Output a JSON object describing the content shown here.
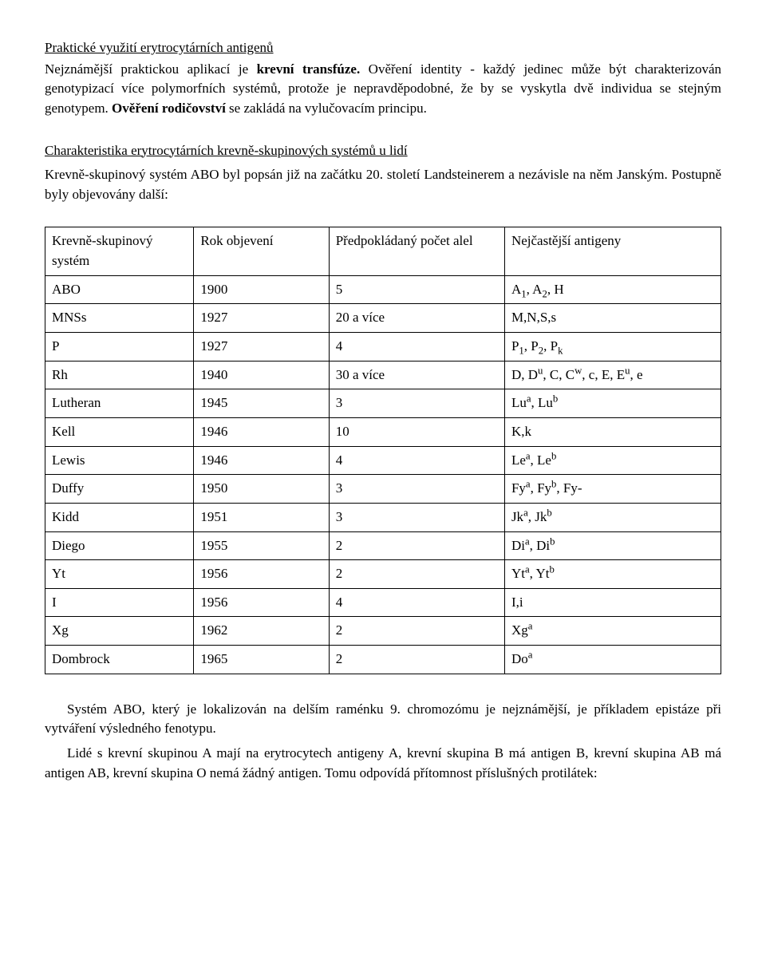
{
  "section1": {
    "title": "Praktické využití erytrocytárních antigenů",
    "p1_a": "Nejznámější praktickou aplikací je ",
    "p1_b": "krevní transfúze.",
    "p1_c": " Ověření identity - každý jedinec může být charakterizován genotypizací více polymorfních systémů, protože je nepravděpodobné, že by se vyskytla dvě individua se stejným genotypem. ",
    "p1_d": "Ověření rodičovství",
    "p1_e": " se zakládá na vylučovacím principu."
  },
  "section2": {
    "title": "Charakteristika erytrocytárních krevně-skupinových systémů u lidí",
    "p1": "Krevně-skupinový systém ABO byl popsán již na začátku 20. století Landsteinerem a nezávisle na něm Janským. Postupně byly objevovány další:"
  },
  "table": {
    "headers": {
      "c1": "Krevně-skupinový systém",
      "c2": "Rok objevení",
      "c3": "Předpokládaný počet alel",
      "c4": "Nejčastější antigeny"
    },
    "rows": [
      {
        "c1": "ABO",
        "c2": "1900",
        "c3": "5",
        "c4": "A<sub>1</sub>, A<sub>2</sub>, H"
      },
      {
        "c1": "MNSs",
        "c2": "1927",
        "c3": "20 a více",
        "c4": "M,N,S,s"
      },
      {
        "c1": "P",
        "c2": "1927",
        "c3": "4",
        "c4": "P<sub>1</sub>, P<sub>2</sub>, P<sub>k</sub>"
      },
      {
        "c1": "Rh",
        "c2": "1940",
        "c3": "30 a více",
        "c4": "D, D<sup>u</sup>, C, C<sup>w</sup>, c, E, E<sup>u</sup>, e"
      },
      {
        "c1": "Lutheran",
        "c2": "1945",
        "c3": "3",
        "c4": "Lu<sup>a</sup>, Lu<sup>b</sup>"
      },
      {
        "c1": "Kell",
        "c2": "1946",
        "c3": "10",
        "c4": "K,k"
      },
      {
        "c1": "Lewis",
        "c2": "1946",
        "c3": "4",
        "c4": "Le<sup>a</sup>, Le<sup>b</sup>"
      },
      {
        "c1": "Duffy",
        "c2": "1950",
        "c3": "3",
        "c4": "Fy<sup>a</sup>, Fy<sup>b</sup>, Fy-"
      },
      {
        "c1": "Kidd",
        "c2": "1951",
        "c3": "3",
        "c4": "Jk<sup>a</sup>, Jk<sup>b</sup>"
      },
      {
        "c1": "Diego",
        "c2": "1955",
        "c3": "2",
        "c4": "Di<sup>a</sup>, Di<sup>b</sup>"
      },
      {
        "c1": "Yt",
        "c2": "1956",
        "c3": "2",
        "c4": "Yt<sup>a</sup>, Yt<sup>b</sup>"
      },
      {
        "c1": "I",
        "c2": "1956",
        "c3": "4",
        "c4": "I,i"
      },
      {
        "c1": "Xg",
        "c2": "1962",
        "c3": "2",
        "c4": "Xg<sup>a</sup>"
      },
      {
        "c1": "Dombrock",
        "c2": "1965",
        "c3": "2",
        "c4": "Do<sup>a</sup>"
      }
    ],
    "col_widths": [
      "22%",
      "20%",
      "26%",
      "32%"
    ]
  },
  "section3": {
    "p1": "Systém ABO, který je lokalizován na delším raménku 9. chromozómu je nejznámější, je příkladem epistáze při vytváření výsledného fenotypu.",
    "p2": "Lidé s krevní skupinou A mají na erytrocytech antigeny A, krevní skupina B má antigen B, krevní skupina AB má antigen AB, krevní skupina O nemá žádný antigen. Tomu odpovídá přítomnost příslušných protilátek:"
  }
}
